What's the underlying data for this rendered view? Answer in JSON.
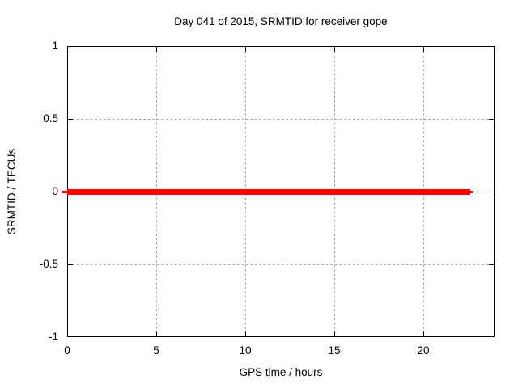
{
  "chart_data": {
    "type": "line",
    "title": "Day 041 of 2015, SRMTID for receiver gope",
    "xlabel": "GPS time / hours",
    "ylabel": "SRMTID / TECUs",
    "xlim": [
      0,
      24
    ],
    "ylim": [
      -1,
      1
    ],
    "x_ticks": [
      {
        "value": 0,
        "label": "0"
      },
      {
        "value": 5,
        "label": "5"
      },
      {
        "value": 10,
        "label": "10"
      },
      {
        "value": 15,
        "label": "15"
      },
      {
        "value": 20,
        "label": "20"
      }
    ],
    "y_ticks": [
      {
        "value": 1,
        "label": "1"
      },
      {
        "value": 0.5,
        "label": "0.5"
      },
      {
        "value": 0,
        "label": "0"
      },
      {
        "value": -0.5,
        "label": "-0.5"
      },
      {
        "value": -1,
        "label": "-1"
      }
    ],
    "grid": "dotted",
    "legend": "none",
    "series": [
      {
        "name": "SRMTID",
        "type": "line",
        "color": "#ff0000",
        "x": [
          0,
          22.8
        ],
        "y": [
          0,
          0
        ]
      }
    ],
    "colors": {
      "background": "#ffffff",
      "axis": "#000000",
      "grid": "#a6a6a6",
      "text": "#000000",
      "series": "#ff0000"
    }
  }
}
